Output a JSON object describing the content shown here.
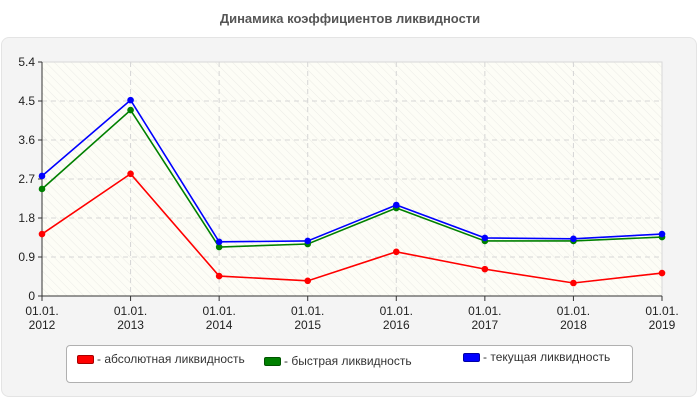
{
  "title": "Динамика коэффициентов ликвидности",
  "chart_data": {
    "type": "line",
    "title": "Динамика коэффициентов ликвидности",
    "xlabel": "",
    "ylabel": "",
    "categories": [
      "01.01.2012",
      "01.01.2013",
      "01.01.2014",
      "01.01.2015",
      "01.01.2016",
      "01.01.2017",
      "01.01.2018",
      "01.01.2019"
    ],
    "x_tick_labels": [
      [
        "01.01.",
        "2012"
      ],
      [
        "01.01.",
        "2013"
      ],
      [
        "01.01.",
        "2014"
      ],
      [
        "01.01.",
        "2015"
      ],
      [
        "01.01.",
        "2016"
      ],
      [
        "01.01.",
        "2017"
      ],
      [
        "01.01.",
        "2018"
      ],
      [
        "01.01.",
        "2019"
      ]
    ],
    "y_ticks": [
      "0",
      "0.9",
      "1.8",
      "2.7",
      "3.6",
      "4.5",
      "5.4"
    ],
    "ylim": [
      0,
      5.4
    ],
    "grid": true,
    "legend_position": "bottom",
    "series": [
      {
        "name": "- абсолютная ликвидность",
        "color": "#ff0000",
        "values": [
          1.43,
          2.82,
          0.46,
          0.35,
          1.02,
          0.62,
          0.3,
          0.53
        ]
      },
      {
        "name": "- быстрая ликвидность",
        "color": "#008000",
        "values": [
          2.47,
          4.29,
          1.13,
          1.2,
          2.03,
          1.27,
          1.27,
          1.36
        ]
      },
      {
        "name": "- текущая ликвидность",
        "color": "#0000ff",
        "values": [
          2.77,
          4.52,
          1.25,
          1.27,
          2.1,
          1.34,
          1.32,
          1.43
        ]
      }
    ]
  },
  "legend": [
    {
      "label": "- абсолютная ликвидность",
      "color": "#ff0000"
    },
    {
      "label": "- быстрая ликвидность",
      "color": "#008000"
    },
    {
      "label": "- текущая ликвидность",
      "color": "#0000ff"
    }
  ]
}
